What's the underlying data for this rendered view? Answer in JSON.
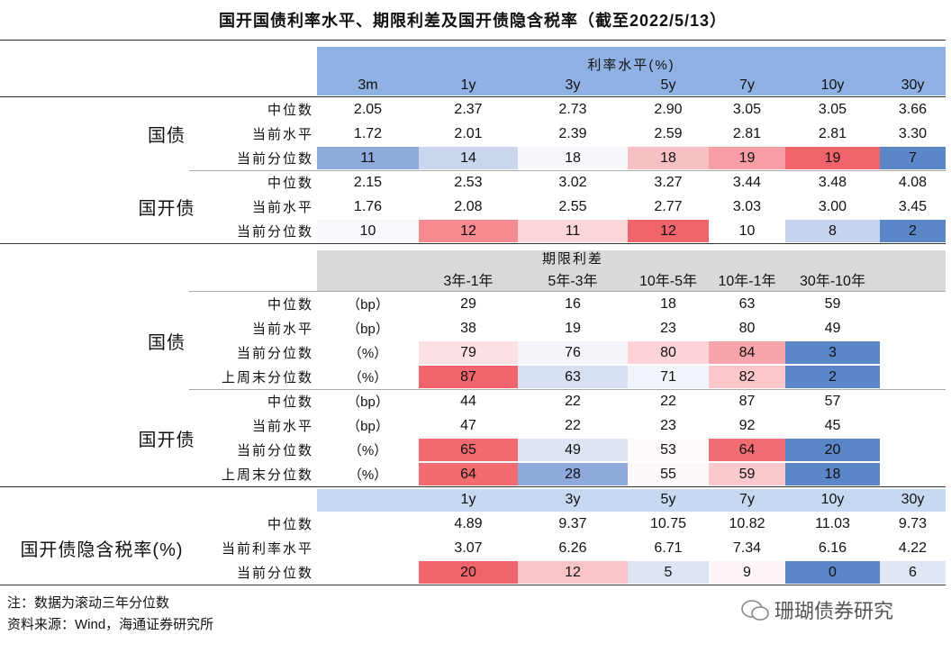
{
  "title": "国开国债利率水平、期限利差及国开债隐含税率（截至2022/5/13）",
  "section1": {
    "header": "利率水平(%)",
    "columns": [
      "3m",
      "1y",
      "3y",
      "5y",
      "7y",
      "10y",
      "30y"
    ],
    "groups": [
      {
        "label": "国债",
        "rows": [
          {
            "label": "中位数",
            "values": [
              "2.05",
              "2.37",
              "2.73",
              "2.90",
              "3.05",
              "3.05",
              "3.66"
            ]
          },
          {
            "label": "当前水平",
            "values": [
              "1.72",
              "2.01",
              "2.39",
              "2.59",
              "2.81",
              "2.81",
              "3.30"
            ]
          },
          {
            "label": "当前分位数",
            "values": [
              "11",
              "14",
              "18",
              "18",
              "19",
              "19",
              "7"
            ],
            "fills": [
              "#8faadc",
              "#c9d6ee",
              "#f7f8fc",
              "#f8c0c3",
              "#f69ea4",
              "#f0636b",
              "#5b87c8"
            ]
          }
        ]
      },
      {
        "label": "国开债",
        "rows": [
          {
            "label": "中位数",
            "values": [
              "2.15",
              "2.53",
              "3.02",
              "3.27",
              "3.44",
              "3.48",
              "4.08"
            ]
          },
          {
            "label": "当前水平",
            "values": [
              "1.76",
              "2.08",
              "2.55",
              "2.77",
              "3.03",
              "3.00",
              "3.45"
            ]
          },
          {
            "label": "当前分位数",
            "values": [
              "10",
              "12",
              "11",
              "12",
              "10",
              "8",
              "2"
            ],
            "fills": [
              "#f8f9fd",
              "#f58a90",
              "#fbd5d8",
              "#f0656c",
              "#ffffff",
              "#c6d4ee",
              "#5b87c8"
            ]
          }
        ]
      }
    ]
  },
  "section2": {
    "header": "期限利差",
    "columns": [
      "3年-1年",
      "5年-3年",
      "10年-5年",
      "10年-1年",
      "30年-10年"
    ],
    "groups": [
      {
        "label": "国债",
        "rows": [
          {
            "label": "中位数",
            "unit": "（bp）",
            "values": [
              "29",
              "16",
              "18",
              "63",
              "59"
            ]
          },
          {
            "label": "当前水平",
            "unit": "（bp）",
            "values": [
              "38",
              "19",
              "23",
              "80",
              "49"
            ]
          },
          {
            "label": "当前分位数",
            "unit": "（%）",
            "values": [
              "79",
              "76",
              "80",
              "84",
              "3"
            ],
            "fills": [
              "#fde0e3",
              "#f3f5fb",
              "#fcd3d6",
              "#f8a5aa",
              "#5b87c8"
            ]
          },
          {
            "label": "上周末分位数",
            "unit": "（%）",
            "values": [
              "87",
              "63",
              "71",
              "82",
              "2"
            ],
            "fills": [
              "#f0646b",
              "#d7e0f2",
              "#f1f4fa",
              "#fbc7cb",
              "#5b87c8"
            ]
          }
        ]
      },
      {
        "label": "国开债",
        "rows": [
          {
            "label": "中位数",
            "unit": "（bp）",
            "values": [
              "44",
              "22",
              "22",
              "87",
              "57"
            ]
          },
          {
            "label": "当前水平",
            "unit": "（bp）",
            "values": [
              "47",
              "22",
              "23",
              "92",
              "45"
            ]
          },
          {
            "label": "当前分位数",
            "unit": "（%）",
            "values": [
              "65",
              "49",
              "53",
              "64",
              "20"
            ],
            "fills": [
              "#f06a70",
              "#dde5f4",
              "#fefafa",
              "#f26d73",
              "#5b87c8"
            ]
          },
          {
            "label": "上周末分位数",
            "unit": "（%）",
            "values": [
              "64",
              "28",
              "55",
              "59",
              "18"
            ],
            "fills": [
              "#f26b71",
              "#8ea9db",
              "#fdf8f9",
              "#fbc9cd",
              "#5b87c8"
            ]
          }
        ]
      }
    ]
  },
  "section3": {
    "columns": [
      "1y",
      "3y",
      "5y",
      "7y",
      "10y",
      "30y"
    ],
    "groups": [
      {
        "label": "国开债隐含税率(%)",
        "rows": [
          {
            "label": "中位数",
            "values": [
              "4.89",
              "9.37",
              "10.75",
              "10.82",
              "11.03",
              "9.73"
            ]
          },
          {
            "label": "当前利率水平",
            "values": [
              "3.07",
              "6.26",
              "6.71",
              "7.34",
              "6.16",
              "4.22"
            ]
          },
          {
            "label": "当前分位数",
            "values": [
              "20",
              "12",
              "5",
              "9",
              "0",
              "6"
            ],
            "fills": [
              "#f0646b",
              "#f9c4c8",
              "#dce4f4",
              "#fdf5f6",
              "#5b87c8",
              "#dfe6f4"
            ]
          }
        ]
      }
    ]
  },
  "notes": [
    "注：数据为滚动三年分位数",
    "资料来源：Wind，海通证券研究所"
  ],
  "watermark": "珊瑚债券研究"
}
